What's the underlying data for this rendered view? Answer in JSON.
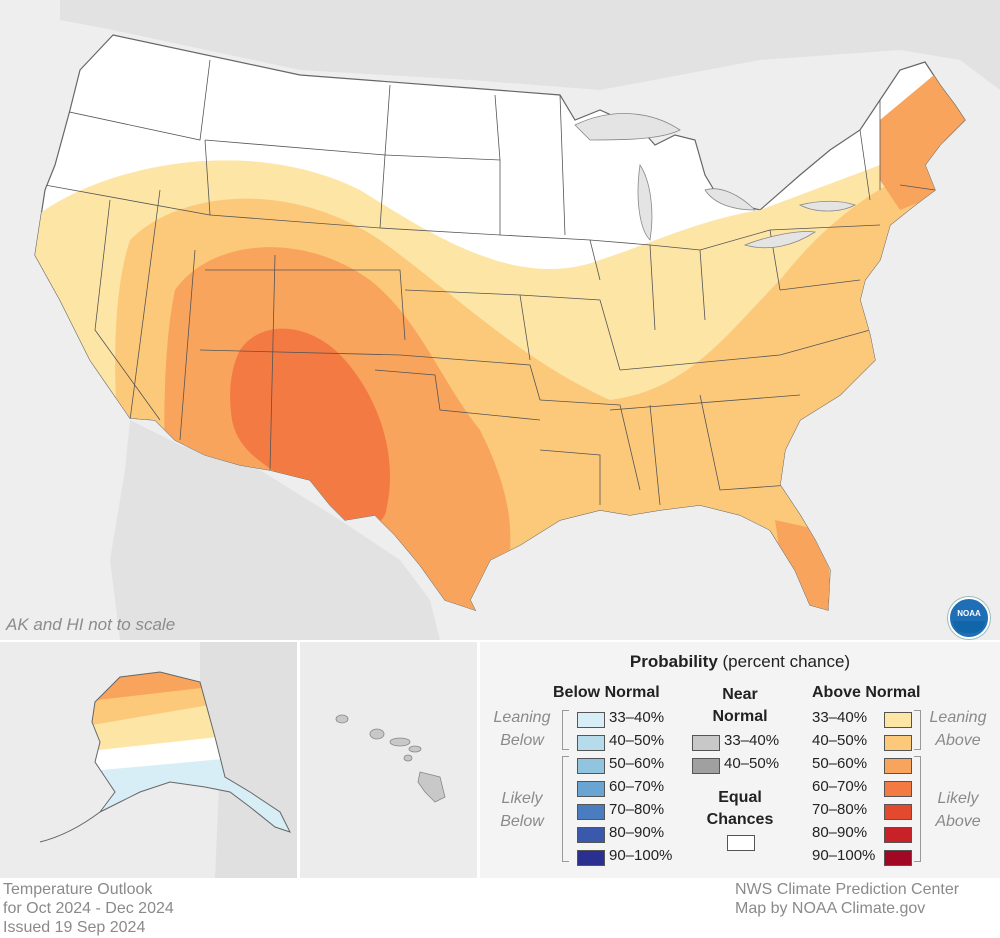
{
  "map": {
    "inset_note": "AK and HI not to scale",
    "logo_text": "NOAA"
  },
  "legend": {
    "title_bold": "Probability",
    "title_rest": " (percent chance)",
    "below": {
      "heading": "Below Normal",
      "side_leaning": [
        "Leaning",
        "Below"
      ],
      "side_likely": [
        "Likely",
        "Below"
      ],
      "items": [
        {
          "label": "33–40%",
          "color": "#d7eef6"
        },
        {
          "label": "40–50%",
          "color": "#b6dcec"
        },
        {
          "label": "50–60%",
          "color": "#90c4df"
        },
        {
          "label": "60–70%",
          "color": "#6aa4d2"
        },
        {
          "label": "70–80%",
          "color": "#4a7dc0"
        },
        {
          "label": "80–90%",
          "color": "#3a58ac"
        },
        {
          "label": "90–100%",
          "color": "#2b3090"
        }
      ]
    },
    "near": {
      "heading_line1": "Near",
      "heading_line2": "Normal",
      "items": [
        {
          "label": "33–40%",
          "color": "#c8c8c8"
        },
        {
          "label": "40–50%",
          "color": "#a0a0a0"
        }
      ],
      "equal_line1": "Equal",
      "equal_line2": "Chances",
      "equal_color": "#ffffff"
    },
    "above": {
      "heading": "Above Normal",
      "side_leaning": [
        "Leaning",
        "Above"
      ],
      "side_likely": [
        "Likely",
        "Above"
      ],
      "items": [
        {
          "label": "33–40%",
          "color": "#fde5a6"
        },
        {
          "label": "40–50%",
          "color": "#fcc97b"
        },
        {
          "label": "50–60%",
          "color": "#f9a45c"
        },
        {
          "label": "60–70%",
          "color": "#f47a44"
        },
        {
          "label": "70–80%",
          "color": "#e2492f"
        },
        {
          "label": "80–90%",
          "color": "#c82127"
        },
        {
          "label": "90–100%",
          "color": "#a00823"
        }
      ]
    }
  },
  "footer": {
    "left": [
      "Temperature Outlook",
      "for Oct 2024 - Dec 2024",
      "Issued 19 Sep 2024"
    ],
    "right": [
      "NWS Climate Prediction Center",
      "Map by NOAA Climate.gov"
    ]
  }
}
